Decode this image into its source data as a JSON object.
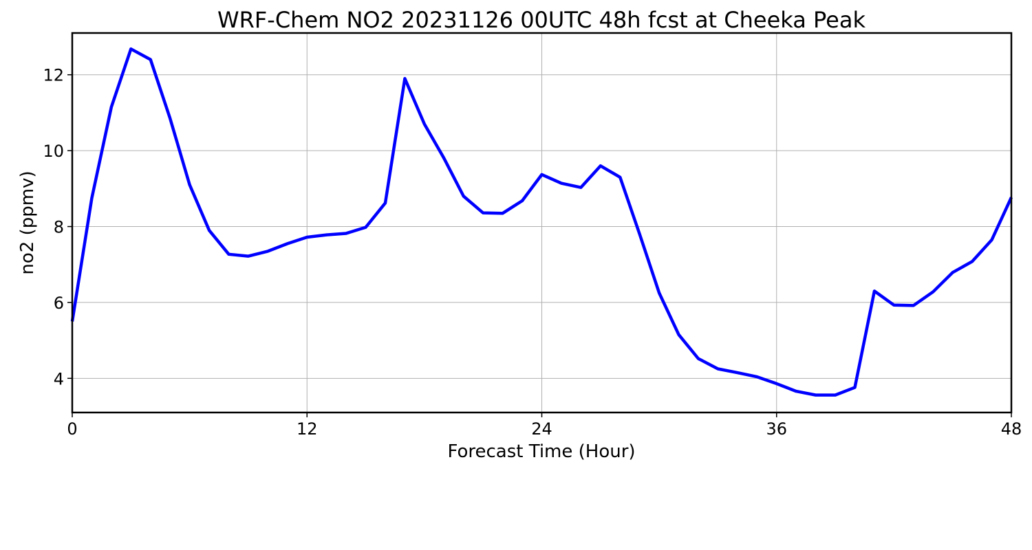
{
  "chart_data": {
    "type": "line",
    "title": "WRF-Chem NO2  20231126 00UTC 48h fcst at Cheeka Peak",
    "xlabel": "Forecast Time (Hour)",
    "ylabel": "no2  (ppmv)",
    "xlim": [
      0,
      48
    ],
    "ylim": [
      3.1,
      13.1
    ],
    "xticks": [
      0,
      12,
      24,
      36,
      48
    ],
    "yticks": [
      4,
      6,
      8,
      10,
      12
    ],
    "grid": true,
    "line_color": "#0000ff",
    "x": [
      0,
      1,
      2,
      3,
      4,
      5,
      6,
      7,
      8,
      9,
      10,
      11,
      12,
      13,
      14,
      15,
      16,
      17,
      18,
      19,
      20,
      21,
      22,
      23,
      24,
      25,
      26,
      27,
      28,
      29,
      30,
      31,
      32,
      33,
      34,
      35,
      36,
      37,
      38,
      39,
      40,
      41,
      42,
      43,
      44,
      45,
      46,
      47,
      48
    ],
    "series": [
      {
        "values": [
          5.5,
          8.75,
          11.15,
          12.68,
          12.4,
          10.85,
          9.1,
          7.9,
          7.27,
          7.22,
          7.35,
          7.55,
          7.72,
          7.78,
          7.82,
          7.98,
          8.62,
          11.9,
          10.7,
          9.8,
          8.8,
          8.36,
          8.35,
          8.68,
          9.37,
          9.14,
          9.03,
          9.6,
          9.3,
          7.8,
          6.25,
          5.15,
          4.52,
          4.25,
          4.15,
          4.04,
          3.86,
          3.66,
          3.56,
          3.56,
          3.76,
          6.3,
          5.93,
          5.92,
          6.28,
          6.79,
          7.08,
          7.65,
          8.77
        ]
      }
    ]
  }
}
